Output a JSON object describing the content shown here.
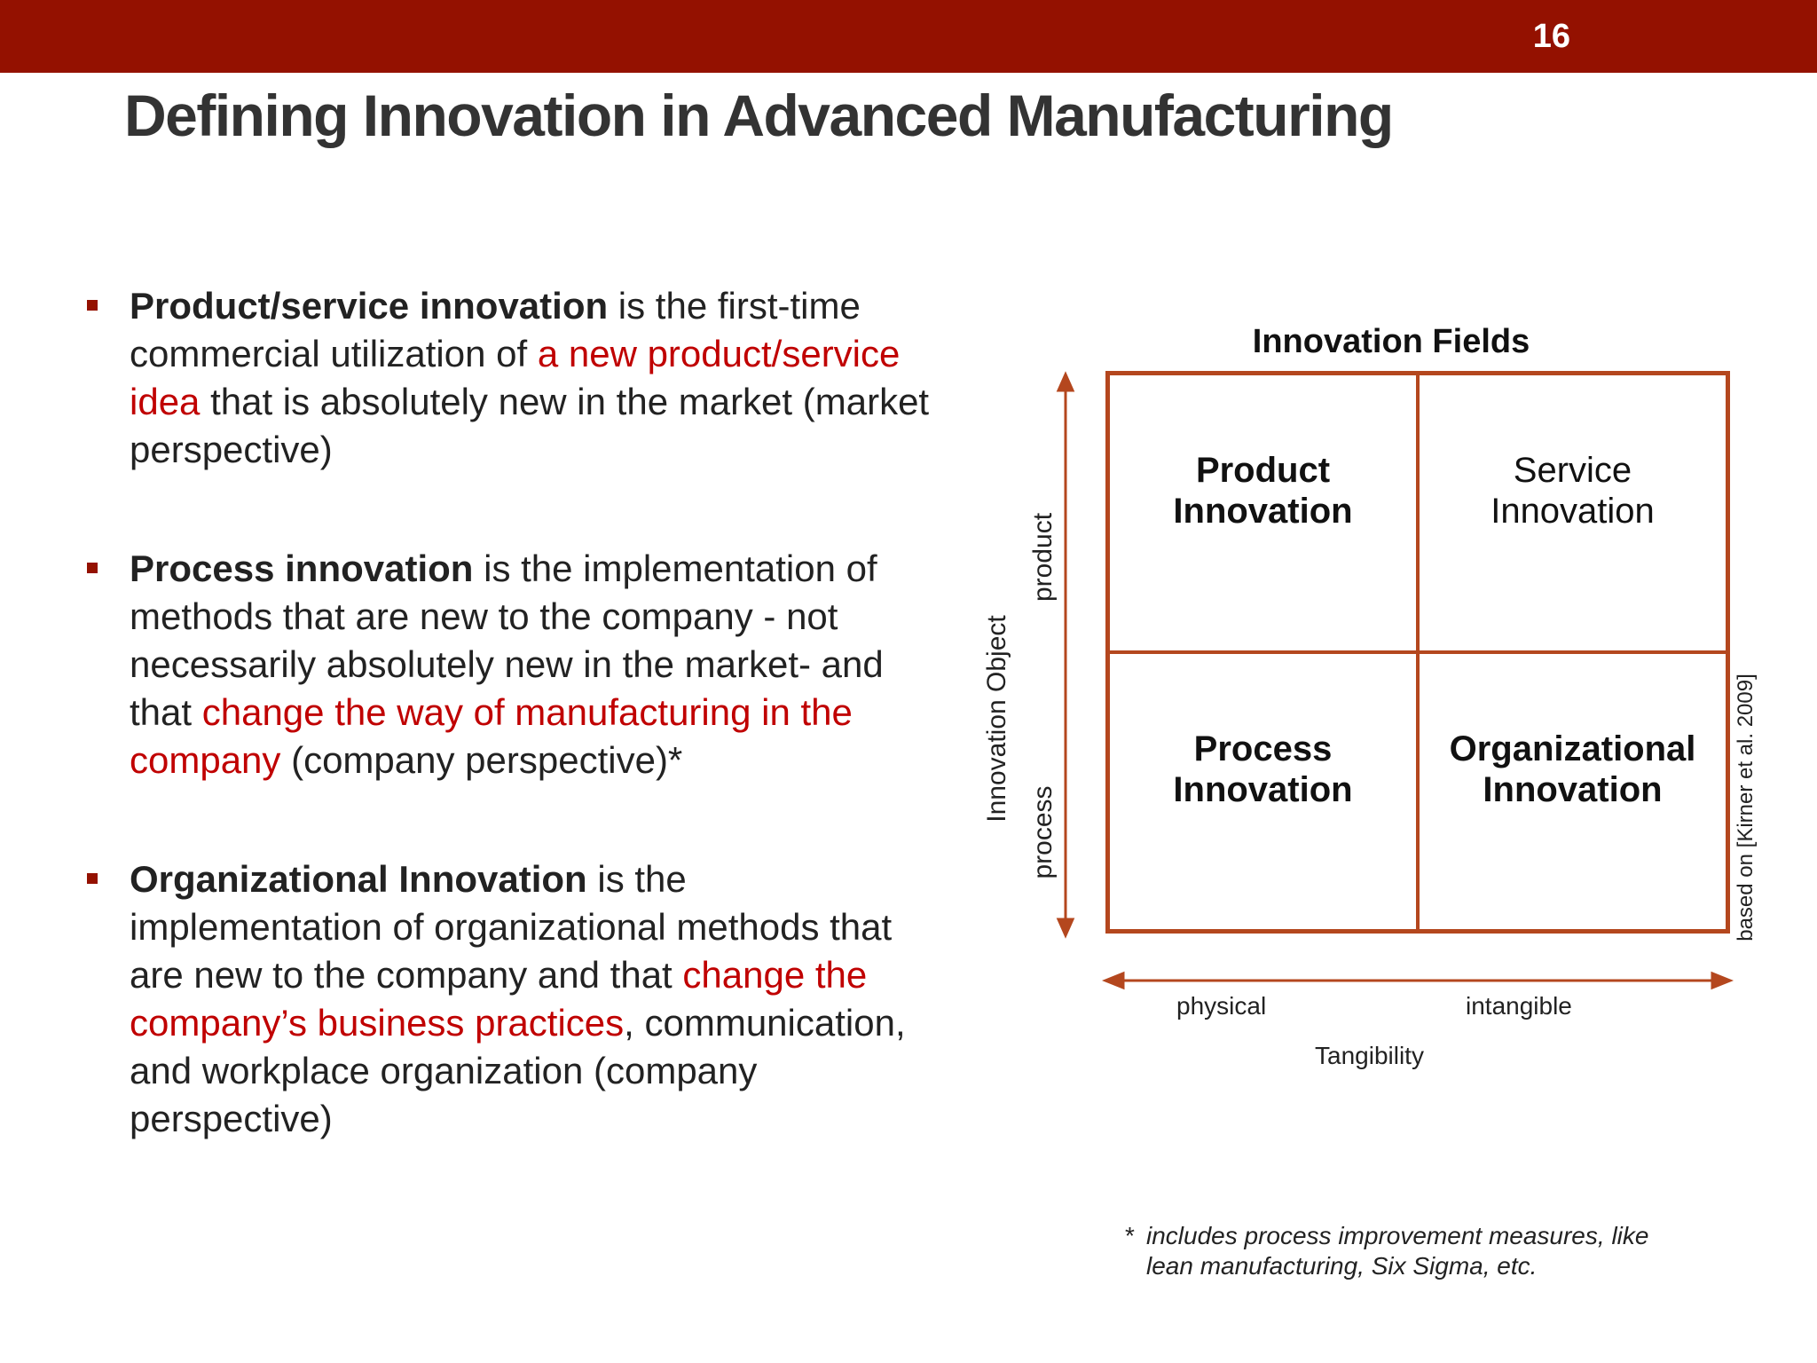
{
  "header": {
    "slide_number": "16",
    "bar_color": "#941100"
  },
  "title": "Defining Innovation in Advanced Manufacturing",
  "bullets": [
    {
      "lead": "Product/service innovation",
      "text1": " is the first-time commercial utilization of ",
      "highlight": "a new product/service idea",
      "text2": " that is absolutely new in the market (market perspective)"
    },
    {
      "lead": "Process innovation",
      "text1": " is the implementation of methods that are new to the company - not necessarily absolutely new in the market- and that ",
      "highlight": "change the way of manufacturing in the company",
      "text2": " (company perspective)*"
    },
    {
      "lead": "Organizational Innovation",
      "text1": " is the implementation of organizational methods that are new to the company and that ",
      "highlight": "change the company’s business practices",
      "text2": ", communication, and workplace organization (company perspective)"
    }
  ],
  "matrix": {
    "title": "Innovation Fields",
    "cells": {
      "top_left": [
        "Product",
        "Innovation"
      ],
      "top_right": [
        "Service",
        "Innovation"
      ],
      "bottom_left": [
        "Process",
        "Innovation"
      ],
      "bottom_right": [
        "Organizational",
        "Innovation"
      ]
    },
    "y_axis": {
      "label": "Innovation Object",
      "top": "product",
      "bottom": "process"
    },
    "x_axis": {
      "label": "Tangibility",
      "left": "physical",
      "right": "intangible"
    },
    "source": "based on [Kirner et al. 2009]",
    "accent_color": "#b4471e",
    "highlight_color": "#c00000"
  },
  "footnote": {
    "star": "*",
    "text": "includes process improvement measures, like lean manufacturing, Six Sigma, etc."
  }
}
